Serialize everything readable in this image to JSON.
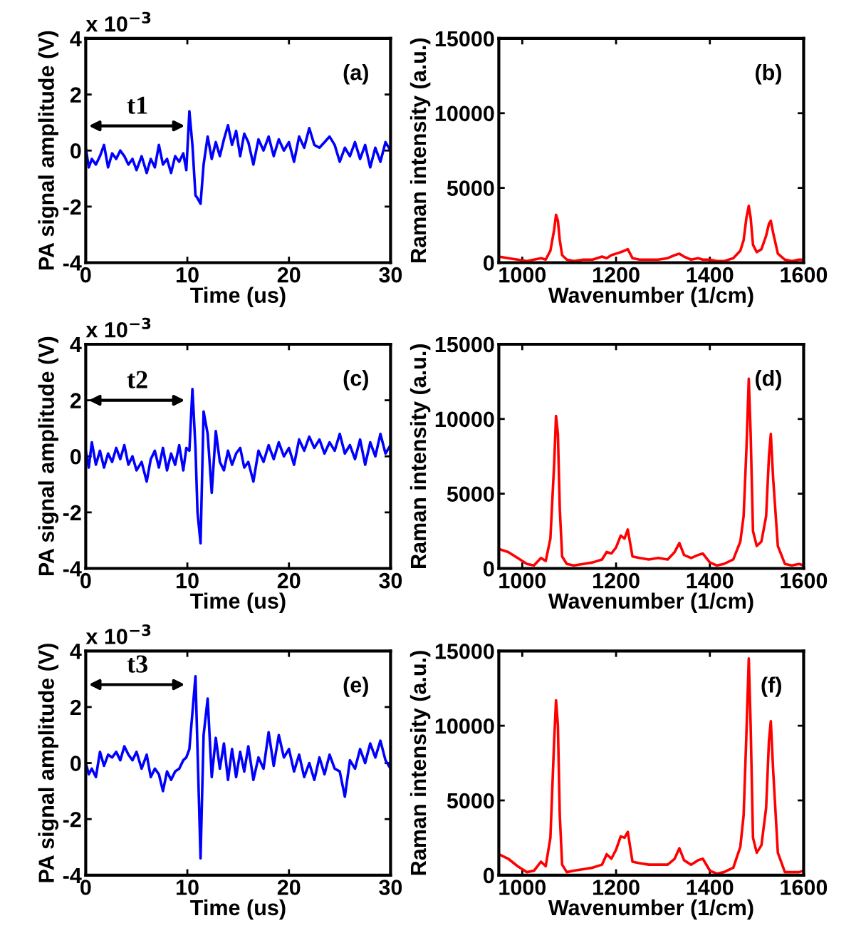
{
  "chart_data": [
    {
      "type": "line",
      "xlabel": "Time (us)",
      "ylabel": "PA signal amplitude (V)",
      "xlim": [
        0,
        30
      ],
      "ylim": [
        -4,
        4
      ],
      "xticks": [
        0,
        10,
        20,
        30
      ],
      "yticks": [
        -4,
        -2,
        0,
        2,
        4
      ],
      "grid": false,
      "annotations": [
        "x 10$^{−3}$",
        "t1",
        "(a)"
      ],
      "series": [
        {
          "color": "#0000ff",
          "x": [
            0,
            0.3,
            0.6,
            1,
            1.4,
            1.8,
            2.2,
            2.6,
            3,
            3.4,
            3.8,
            4.2,
            4.6,
            5,
            5.5,
            6,
            6.4,
            6.8,
            7.2,
            7.6,
            8,
            8.4,
            8.8,
            9.2,
            9.6,
            9.9,
            10.2,
            10.5,
            10.8,
            11.0,
            11.3,
            11.6,
            12,
            12.4,
            12.8,
            13.2,
            13.6,
            14,
            14.4,
            14.8,
            15.2,
            15.6,
            16,
            16.5,
            17,
            17.5,
            18,
            18.5,
            19,
            19.5,
            20,
            20.5,
            21,
            21.5,
            22,
            22.5,
            23,
            23.5,
            24,
            24.5,
            25,
            25.5,
            26,
            26.5,
            27,
            27.5,
            28,
            28.5,
            29,
            29.5,
            30
          ],
          "values": [
            0.1,
            -0.6,
            -0.3,
            -0.5,
            -0.2,
            0.2,
            -0.6,
            -0.1,
            -0.3,
            0.0,
            -0.2,
            -0.5,
            -0.3,
            -0.7,
            -0.2,
            -0.8,
            -0.3,
            -0.6,
            0.2,
            -0.5,
            -0.3,
            -0.8,
            -0.2,
            -0.4,
            -0.1,
            -0.7,
            1.4,
            0.2,
            -1.6,
            -1.7,
            -1.9,
            -0.5,
            0.5,
            -0.3,
            0.3,
            -0.2,
            0.4,
            0.9,
            0.2,
            0.7,
            -0.2,
            0.6,
            0.3,
            -0.5,
            0.4,
            0.0,
            0.5,
            -0.2,
            0.4,
            0.0,
            0.3,
            -0.4,
            0.5,
            0.1,
            0.8,
            0.2,
            0.1,
            0.3,
            0.5,
            0.2,
            -0.4,
            0.1,
            -0.2,
            0.3,
            -0.3,
            0.2,
            -0.6,
            0.1,
            -0.4,
            0.3,
            0.0
          ]
        }
      ]
    },
    {
      "type": "line",
      "xlabel": "Wavenumber (1/cm)",
      "ylabel": "Raman intensity (a.u.)",
      "xlim": [
        950,
        1600
      ],
      "ylim": [
        0,
        15000
      ],
      "xticks": [
        1000,
        1200,
        1400,
        1600
      ],
      "yticks": [
        0,
        5000,
        10000,
        15000
      ],
      "grid": false,
      "annotations": [
        "(b)"
      ],
      "series": [
        {
          "color": "#ff0000",
          "x": [
            950,
            970,
            990,
            1010,
            1025,
            1040,
            1050,
            1060,
            1068,
            1072,
            1076,
            1080,
            1085,
            1095,
            1110,
            1130,
            1150,
            1170,
            1180,
            1190,
            1200,
            1210,
            1218,
            1225,
            1235,
            1250,
            1270,
            1290,
            1310,
            1325,
            1335,
            1345,
            1360,
            1375,
            1385,
            1400,
            1415,
            1430,
            1450,
            1465,
            1472,
            1478,
            1483,
            1487,
            1492,
            1500,
            1510,
            1520,
            1526,
            1530,
            1535,
            1545,
            1560,
            1575,
            1590,
            1600
          ],
          "values": [
            400,
            300,
            200,
            100,
            200,
            300,
            200,
            800,
            2200,
            3200,
            2800,
            1500,
            500,
            200,
            100,
            200,
            200,
            400,
            300,
            500,
            600,
            700,
            800,
            900,
            300,
            200,
            200,
            200,
            300,
            500,
            600,
            400,
            200,
            300,
            200,
            200,
            100,
            100,
            300,
            800,
            1500,
            3000,
            3800,
            3000,
            1200,
            700,
            900,
            1800,
            2600,
            2800,
            2000,
            600,
            200,
            100,
            200,
            200
          ]
        }
      ]
    },
    {
      "type": "line",
      "xlabel": "Time (us)",
      "ylabel": "PA signal amplitude (V)",
      "xlim": [
        0,
        30
      ],
      "ylim": [
        -4,
        4
      ],
      "xticks": [
        0,
        10,
        20,
        30
      ],
      "yticks": [
        -4,
        -2,
        0,
        2,
        4
      ],
      "grid": false,
      "annotations": [
        "x 10$^{−3}$",
        "t2",
        "(c)"
      ],
      "series": [
        {
          "color": "#0000ff",
          "x": [
            0,
            0.3,
            0.6,
            1,
            1.4,
            1.8,
            2.2,
            2.6,
            3,
            3.4,
            3.8,
            4.2,
            4.6,
            5,
            5.5,
            6,
            6.4,
            6.8,
            7.2,
            7.6,
            8,
            8.4,
            8.8,
            9.2,
            9.6,
            9.9,
            10.2,
            10.5,
            10.8,
            11.0,
            11.3,
            11.6,
            12,
            12.4,
            12.8,
            13.2,
            13.6,
            14,
            14.4,
            14.8,
            15.2,
            15.6,
            16,
            16.5,
            17,
            17.5,
            18,
            18.5,
            19,
            19.5,
            20,
            20.5,
            21,
            21.5,
            22,
            22.5,
            23,
            23.5,
            24,
            24.5,
            25,
            25.5,
            26,
            26.5,
            27,
            27.5,
            28,
            28.5,
            29,
            29.5,
            30
          ],
          "values": [
            0.2,
            -0.4,
            0.5,
            -0.3,
            0.2,
            -0.4,
            0.1,
            -0.2,
            0.3,
            -0.1,
            0.4,
            -0.3,
            0.0,
            -0.5,
            -0.2,
            -0.9,
            -0.1,
            0.2,
            -0.4,
            0.3,
            -0.5,
            0.1,
            -0.3,
            0.4,
            -0.5,
            0.3,
            0.2,
            2.4,
            0.3,
            -2.0,
            -3.1,
            1.6,
            0.8,
            -1.3,
            0.9,
            -0.2,
            -0.5,
            0.2,
            -0.3,
            0.1,
            0.3,
            -0.4,
            -0.2,
            -0.9,
            0.2,
            -0.2,
            0.4,
            -0.1,
            0.5,
            0.0,
            0.3,
            -0.3,
            0.6,
            0.2,
            0.7,
            0.3,
            0.6,
            0.1,
            0.5,
            0.2,
            0.8,
            0.1,
            0.4,
            -0.1,
            0.6,
            -0.3,
            0.5,
            0.0,
            0.8,
            0.1,
            0.4
          ]
        }
      ]
    },
    {
      "type": "line",
      "xlabel": "Wavenumber (1/cm)",
      "ylabel": "Raman intensity (a.u.)",
      "xlim": [
        950,
        1600
      ],
      "ylim": [
        0,
        15000
      ],
      "xticks": [
        1000,
        1200,
        1400,
        1600
      ],
      "yticks": [
        0,
        5000,
        10000,
        15000
      ],
      "grid": false,
      "annotations": [
        "(d)"
      ],
      "series": [
        {
          "color": "#ff0000",
          "x": [
            950,
            970,
            990,
            1010,
            1025,
            1040,
            1050,
            1060,
            1068,
            1072,
            1076,
            1080,
            1085,
            1095,
            1110,
            1130,
            1150,
            1170,
            1180,
            1190,
            1200,
            1210,
            1218,
            1225,
            1235,
            1250,
            1270,
            1290,
            1310,
            1325,
            1335,
            1345,
            1360,
            1375,
            1385,
            1400,
            1415,
            1430,
            1450,
            1465,
            1472,
            1478,
            1483,
            1487,
            1492,
            1500,
            1510,
            1520,
            1526,
            1530,
            1535,
            1545,
            1560,
            1575,
            1590,
            1600
          ],
          "values": [
            1300,
            1100,
            700,
            300,
            200,
            700,
            500,
            2000,
            7000,
            10200,
            9000,
            4000,
            800,
            300,
            200,
            300,
            400,
            600,
            1100,
            1000,
            1400,
            2200,
            2000,
            2600,
            800,
            700,
            600,
            700,
            600,
            1100,
            1700,
            900,
            700,
            900,
            1000,
            400,
            200,
            300,
            600,
            1800,
            3500,
            8000,
            12700,
            9000,
            2500,
            1500,
            1800,
            3500,
            7500,
            9000,
            6000,
            1500,
            300,
            200,
            300,
            200
          ]
        }
      ]
    },
    {
      "type": "line",
      "xlabel": "Time (us)",
      "ylabel": "PA signal amplitude (V)",
      "xlim": [
        0,
        30
      ],
      "ylim": [
        -4,
        4
      ],
      "xticks": [
        0,
        10,
        20,
        30
      ],
      "yticks": [
        -4,
        -2,
        0,
        2,
        4
      ],
      "grid": false,
      "annotations": [
        "x 10$^{−3}$",
        "t3",
        "(e)"
      ],
      "series": [
        {
          "color": "#0000ff",
          "x": [
            0,
            0.3,
            0.6,
            1,
            1.4,
            1.8,
            2.2,
            2.6,
            3,
            3.4,
            3.8,
            4.2,
            4.6,
            5,
            5.5,
            6,
            6.4,
            6.8,
            7.2,
            7.6,
            8,
            8.4,
            8.8,
            9.2,
            9.6,
            9.9,
            10.2,
            10.5,
            10.8,
            11.0,
            11.3,
            11.6,
            12,
            12.4,
            12.8,
            13.2,
            13.6,
            14,
            14.4,
            14.8,
            15.2,
            15.6,
            16,
            16.5,
            17,
            17.5,
            18,
            18.5,
            19,
            19.5,
            20,
            20.5,
            21,
            21.5,
            22,
            22.5,
            23,
            23.5,
            24,
            24.5,
            25,
            25.5,
            26,
            26.5,
            27,
            27.5,
            28,
            28.5,
            29,
            29.5,
            30
          ],
          "values": [
            0.0,
            -0.4,
            -0.2,
            -0.5,
            0.4,
            -0.1,
            0.3,
            0.2,
            0.4,
            0.1,
            0.6,
            0.3,
            0.1,
            0.4,
            -0.2,
            0.3,
            -0.5,
            -0.2,
            -0.4,
            -1.0,
            -0.3,
            -0.6,
            -0.3,
            -0.2,
            0.1,
            0.2,
            0.5,
            1.8,
            3.1,
            0.5,
            -3.4,
            1.0,
            2.3,
            -0.5,
            0.9,
            -0.2,
            0.7,
            -0.6,
            0.5,
            -0.5,
            0.4,
            -0.3,
            0.6,
            -0.6,
            0.2,
            -0.2,
            1.1,
            -0.1,
            1.0,
            0.2,
            0.5,
            -0.3,
            0.3,
            -0.5,
            0.0,
            -0.6,
            0.2,
            -0.4,
            0.3,
            -0.2,
            -0.3,
            -1.2,
            0.1,
            -0.2,
            0.5,
            0.0,
            0.7,
            0.2,
            0.8,
            0.1,
            -0.2
          ]
        }
      ]
    },
    {
      "type": "line",
      "xlabel": "Wavenumber (1/cm)",
      "ylabel": "Raman intensity (a.u.)",
      "xlim": [
        950,
        1600
      ],
      "ylim": [
        0,
        15000
      ],
      "xticks": [
        1000,
        1200,
        1400,
        1600
      ],
      "yticks": [
        0,
        5000,
        10000,
        15000
      ],
      "grid": false,
      "annotations": [
        "(f)"
      ],
      "series": [
        {
          "color": "#ff0000",
          "x": [
            950,
            970,
            990,
            1010,
            1025,
            1040,
            1050,
            1060,
            1068,
            1072,
            1076,
            1080,
            1085,
            1095,
            1110,
            1130,
            1150,
            1170,
            1180,
            1190,
            1200,
            1210,
            1218,
            1225,
            1235,
            1250,
            1270,
            1290,
            1310,
            1325,
            1335,
            1345,
            1360,
            1375,
            1385,
            1400,
            1415,
            1430,
            1450,
            1465,
            1472,
            1478,
            1483,
            1487,
            1492,
            1500,
            1510,
            1520,
            1526,
            1530,
            1535,
            1545,
            1560,
            1575,
            1590,
            1600
          ],
          "values": [
            1400,
            1100,
            600,
            200,
            300,
            900,
            600,
            2500,
            9000,
            11700,
            10000,
            4000,
            700,
            200,
            300,
            400,
            500,
            700,
            1400,
            1100,
            1700,
            2600,
            2500,
            2900,
            900,
            800,
            700,
            700,
            700,
            1100,
            1800,
            1000,
            700,
            1000,
            1100,
            300,
            100,
            200,
            500,
            1900,
            4000,
            9500,
            14500,
            10000,
            2500,
            1500,
            2000,
            4500,
            9000,
            10300,
            7000,
            1500,
            200,
            200,
            200,
            300
          ]
        }
      ]
    }
  ]
}
